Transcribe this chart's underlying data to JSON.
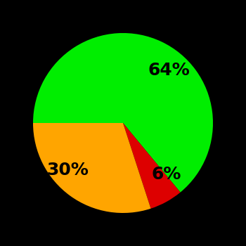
{
  "slices": [
    64,
    6,
    30
  ],
  "labels": [
    "64%",
    "6%",
    "30%"
  ],
  "colors": [
    "#00ee00",
    "#dd0000",
    "#ffa500"
  ],
  "background_color": "#000000",
  "label_fontsize": 18,
  "label_color": "#000000",
  "startangle": 180,
  "figsize": [
    3.5,
    3.5
  ],
  "dpi": 100
}
